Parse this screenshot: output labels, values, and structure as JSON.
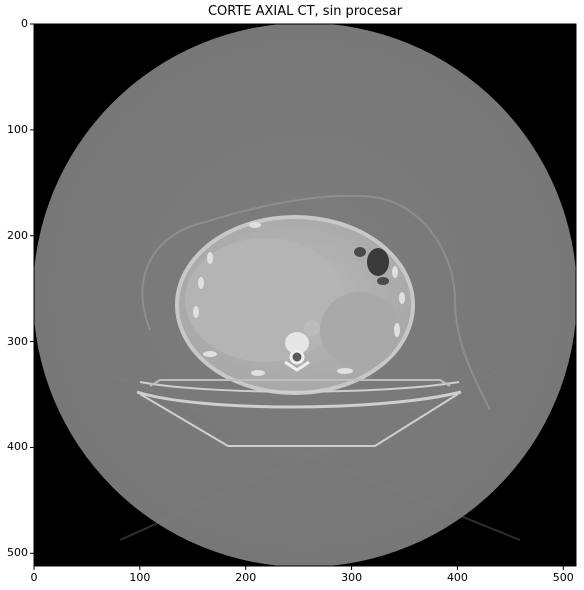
{
  "chart_data": {
    "type": "image",
    "title": "CORTE AXIAL CT, sin procesar",
    "xlabel": "",
    "ylabel": "",
    "xlim": [
      0,
      512
    ],
    "ylim": [
      512,
      0
    ],
    "x_ticks": [
      {
        "value": 0,
        "label": "0"
      },
      {
        "value": 100,
        "label": "100"
      },
      {
        "value": 200,
        "label": "200"
      },
      {
        "value": 300,
        "label": "300"
      },
      {
        "value": 400,
        "label": "400"
      },
      {
        "value": 500,
        "label": "500"
      }
    ],
    "y_ticks": [
      {
        "value": 0,
        "label": "0"
      },
      {
        "value": 100,
        "label": "100"
      },
      {
        "value": 200,
        "label": "200"
      },
      {
        "value": 300,
        "label": "300"
      },
      {
        "value": 400,
        "label": "400"
      },
      {
        "value": 500,
        "label": "500"
      }
    ],
    "colormap": "gray",
    "grid": false
  }
}
